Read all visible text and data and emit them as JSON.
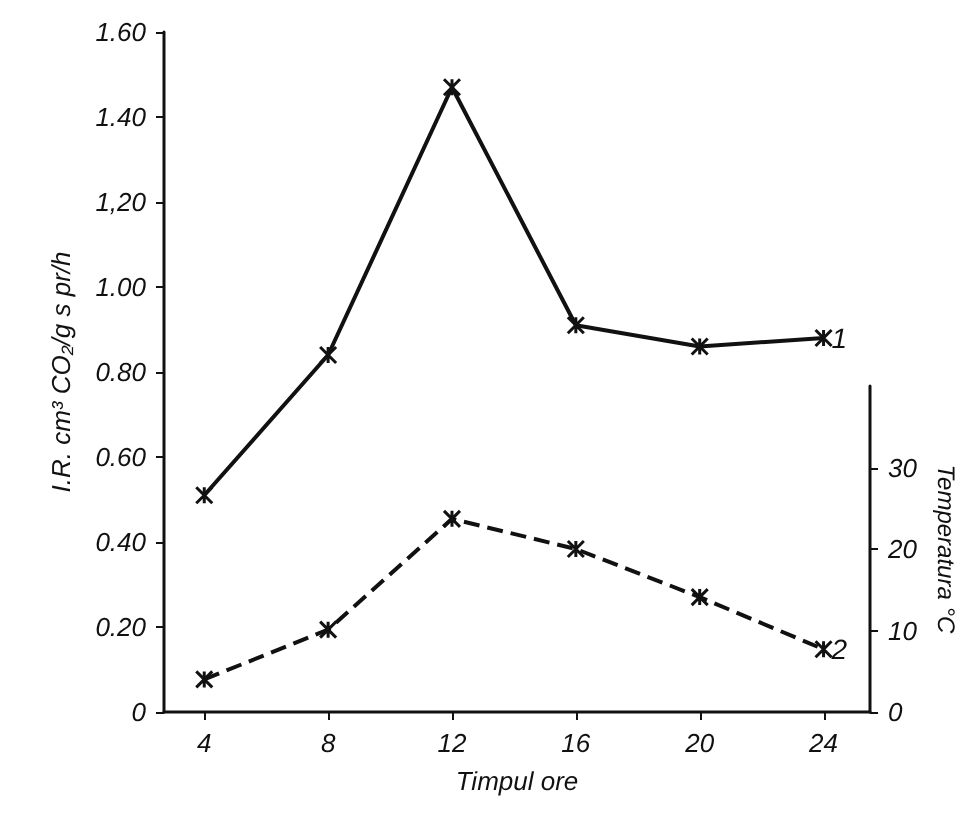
{
  "chart_data": {
    "type": "line",
    "xlabel": "Timpul ore",
    "ylabel": "I.R. cm³ CO₂/g s pr/h",
    "y2label": "Temperatura °C",
    "x": [
      4,
      8,
      12,
      16,
      20,
      24
    ],
    "series": [
      {
        "name": "1",
        "color": "#111111",
        "line_style": "solid",
        "values": [
          0.51,
          0.84,
          1.47,
          0.91,
          0.86,
          0.88
        ]
      },
      {
        "name": "2",
        "color": "#111111",
        "line_style": "dashed",
        "axis": "y2",
        "values": [
          4,
          10.1,
          23.7,
          20,
          14.1,
          7.7
        ]
      }
    ],
    "xlim": [
      2.7,
      25.5
    ],
    "xticks": [
      4,
      8,
      12,
      16,
      20,
      24
    ],
    "ylim": [
      0,
      1.6
    ],
    "yticks": [
      0,
      {
        "value": 0.2,
        "label": "0.20"
      },
      {
        "value": 0.4,
        "label": "0.40"
      },
      {
        "value": 0.6,
        "label": "0.60"
      },
      {
        "value": 0.8,
        "label": "0.80"
      },
      {
        "value": 1.0,
        "label": "1.00"
      },
      {
        "value": 1.2,
        "label": "1,20"
      },
      {
        "value": 1.4,
        "label": "1.40"
      },
      {
        "value": 1.6,
        "label": "1.60"
      }
    ],
    "y2lim": [
      0,
      40
    ],
    "y2ticks": [
      0,
      10,
      20,
      30
    ],
    "grid": false,
    "marker": "cross"
  }
}
